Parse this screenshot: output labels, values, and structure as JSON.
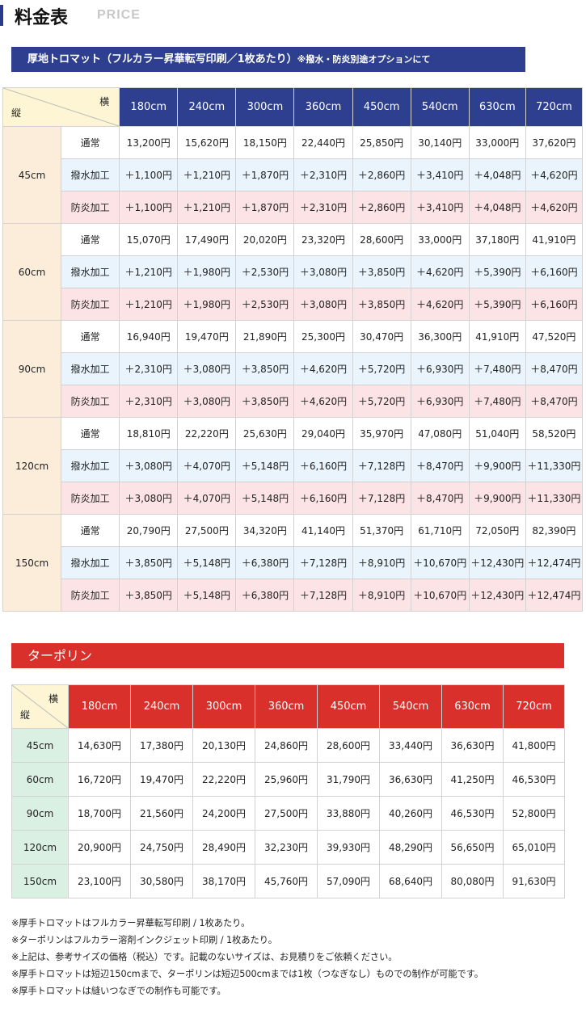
{
  "header": {
    "title": "料金表",
    "subtitle": "PRICE"
  },
  "section1": {
    "title": "厚地トロマット（フルカラー昇華転写印刷／1枚あたり）",
    "note": "※撥水・防炎別途オプションにて",
    "corner": {
      "yoko": "横",
      "tate": "縦"
    },
    "columns": [
      "180cm",
      "240cm",
      "300cm",
      "360cm",
      "450cm",
      "540cm",
      "630cm",
      "720cm"
    ],
    "groups": [
      {
        "height": "45cm",
        "rows": [
          {
            "kind": "通常",
            "values": [
              "13,200円",
              "15,620円",
              "18,150円",
              "22,440円",
              "25,850円",
              "30,140円",
              "33,000円",
              "37,620円"
            ]
          },
          {
            "kind": "撥水加工",
            "values": [
              "＋1,100円",
              "＋1,210円",
              "＋1,870円",
              "＋2,310円",
              "＋2,860円",
              "＋3,410円",
              "＋4,048円",
              "＋4,620円"
            ]
          },
          {
            "kind": "防炎加工",
            "values": [
              "＋1,100円",
              "＋1,210円",
              "＋1,870円",
              "＋2,310円",
              "＋2,860円",
              "＋3,410円",
              "＋4,048円",
              "＋4,620円"
            ]
          }
        ]
      },
      {
        "height": "60cm",
        "rows": [
          {
            "kind": "通常",
            "values": [
              "15,070円",
              "17,490円",
              "20,020円",
              "23,320円",
              "28,600円",
              "33,000円",
              "37,180円",
              "41,910円"
            ]
          },
          {
            "kind": "撥水加工",
            "values": [
              "＋1,210円",
              "＋1,980円",
              "＋2,530円",
              "＋3,080円",
              "＋3,850円",
              "＋4,620円",
              "＋5,390円",
              "＋6,160円"
            ]
          },
          {
            "kind": "防炎加工",
            "values": [
              "＋1,210円",
              "＋1,980円",
              "＋2,530円",
              "＋3,080円",
              "＋3,850円",
              "＋4,620円",
              "＋5,390円",
              "＋6,160円"
            ]
          }
        ]
      },
      {
        "height": "90cm",
        "rows": [
          {
            "kind": "通常",
            "values": [
              "16,940円",
              "19,470円",
              "21,890円",
              "25,300円",
              "30,470円",
              "36,300円",
              "41,910円",
              "47,520円"
            ]
          },
          {
            "kind": "撥水加工",
            "values": [
              "＋2,310円",
              "＋3,080円",
              "＋3,850円",
              "＋4,620円",
              "＋5,720円",
              "＋6,930円",
              "＋7,480円",
              "＋8,470円"
            ]
          },
          {
            "kind": "防炎加工",
            "values": [
              "＋2,310円",
              "＋3,080円",
              "＋3,850円",
              "＋4,620円",
              "＋5,720円",
              "＋6,930円",
              "＋7,480円",
              "＋8,470円"
            ]
          }
        ]
      },
      {
        "height": "120cm",
        "rows": [
          {
            "kind": "通常",
            "values": [
              "18,810円",
              "22,220円",
              "25,630円",
              "29,040円",
              "35,970円",
              "47,080円",
              "51,040円",
              "58,520円"
            ]
          },
          {
            "kind": "撥水加工",
            "values": [
              "＋3,080円",
              "＋4,070円",
              "＋5,148円",
              "＋6,160円",
              "＋7,128円",
              "＋8,470円",
              "＋9,900円",
              "＋11,330円"
            ]
          },
          {
            "kind": "防炎加工",
            "values": [
              "＋3,080円",
              "＋4,070円",
              "＋5,148円",
              "＋6,160円",
              "＋7,128円",
              "＋8,470円",
              "＋9,900円",
              "＋11,330円"
            ]
          }
        ]
      },
      {
        "height": "150cm",
        "rows": [
          {
            "kind": "通常",
            "values": [
              "20,790円",
              "27,500円",
              "34,320円",
              "41,140円",
              "51,370円",
              "61,710円",
              "72,050円",
              "82,390円"
            ]
          },
          {
            "kind": "撥水加工",
            "values": [
              "＋3,850円",
              "＋5,148円",
              "＋6,380円",
              "＋7,128円",
              "＋8,910円",
              "＋10,670円",
              "＋12,430円",
              "＋12,474円"
            ]
          },
          {
            "kind": "防炎加工",
            "values": [
              "＋3,850円",
              "＋5,148円",
              "＋6,380円",
              "＋7,128円",
              "＋8,910円",
              "＋10,670円",
              "＋12,430円",
              "＋12,474円"
            ]
          }
        ]
      }
    ]
  },
  "section2": {
    "title": "ターポリン",
    "corner": {
      "yoko": "横",
      "tate": "縦"
    },
    "columns": [
      "180cm",
      "240cm",
      "300cm",
      "360cm",
      "450cm",
      "540cm",
      "630cm",
      "720cm"
    ],
    "rows": [
      {
        "height": "45cm",
        "values": [
          "14,630円",
          "17,380円",
          "20,130円",
          "24,860円",
          "28,600円",
          "33,440円",
          "36,630円",
          "41,800円"
        ]
      },
      {
        "height": "60cm",
        "values": [
          "16,720円",
          "19,470円",
          "22,220円",
          "25,960円",
          "31,790円",
          "36,630円",
          "41,250円",
          "46,530円"
        ]
      },
      {
        "height": "90cm",
        "values": [
          "18,700円",
          "21,560円",
          "24,200円",
          "27,500円",
          "33,880円",
          "40,260円",
          "46,530円",
          "52,800円"
        ]
      },
      {
        "height": "120cm",
        "values": [
          "20,900円",
          "24,750円",
          "28,490円",
          "32,230円",
          "39,930円",
          "48,290円",
          "56,650円",
          "65,010円"
        ]
      },
      {
        "height": "150cm",
        "values": [
          "23,100円",
          "30,580円",
          "38,170円",
          "45,760円",
          "57,090円",
          "68,640円",
          "80,080円",
          "91,630円"
        ]
      }
    ]
  },
  "notes": [
    "※厚手トロマットはフルカラー昇華転写印刷 / 1枚あたり。",
    "※ターポリンはフルカラー溶剤インクジェット印刷 / 1枚あたり。",
    "※上記は、参考サイズの価格（税込）です。記載のないサイズは、お見積りをご依頼ください。",
    "※厚手トロマットは短辺150cmまで、ターポリンは短辺500cmまでは1枚（つなぎなし）ものでの制作が可能です。",
    "※厚手トロマットは縫いつなぎでの制作も可能です。"
  ],
  "colors": {
    "navy": "#2d3f8e",
    "red": "#d9302b",
    "corner": "#fdf5d4",
    "rowhead_orange": "#fcecda",
    "water_row": "#e9f4fd",
    "fire_row": "#fce3e5",
    "rowhead_green": "#d9f0e3"
  }
}
